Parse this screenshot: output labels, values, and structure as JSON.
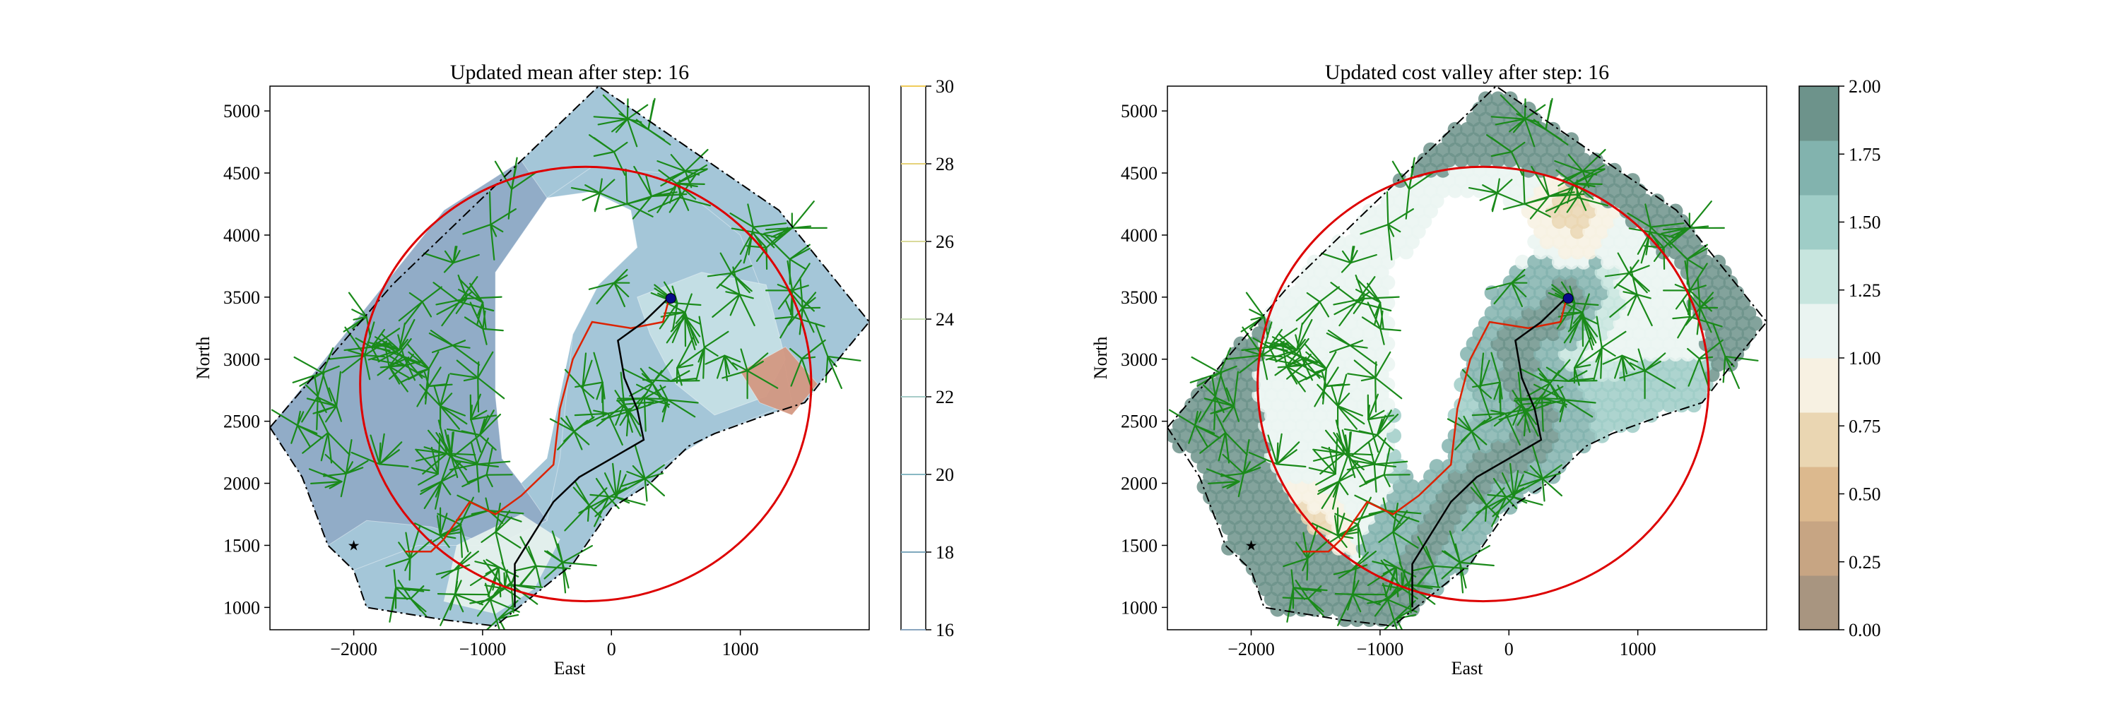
{
  "figure": {
    "panels": [
      {
        "title": "Updated mean after step: 16",
        "xlabel": "East",
        "ylabel": "North",
        "xlim": [
          -2650,
          2000
        ],
        "ylim": [
          820,
          5200
        ],
        "xticks": [
          -2000,
          -1000,
          0,
          1000
        ],
        "xtick_labels": [
          "−2000",
          "−1000",
          "0",
          "1000"
        ],
        "yticks": [
          1000,
          1500,
          2000,
          2500,
          3000,
          3500,
          4000,
          4500,
          5000
        ],
        "ytick_labels": [
          "1000",
          "1500",
          "2000",
          "2500",
          "3000",
          "3500",
          "4000",
          "4500",
          "5000"
        ],
        "colorbar": {
          "type": "line-contour",
          "ticks": [
            16,
            18,
            20,
            22,
            24,
            26,
            28,
            30
          ],
          "tick_labels": [
            "16",
            "18",
            "20",
            "22",
            "24",
            "26",
            "28",
            "30"
          ],
          "range": [
            16,
            30
          ],
          "line_colors": [
            "#8aa5bf",
            "#7fa8bd",
            "#88b8c4",
            "#a7ccc8",
            "#c7dcb3",
            "#d9d99a",
            "#e6d27a",
            "#f0cc5a"
          ]
        }
      },
      {
        "title": "Updated cost valley after step: 16",
        "xlabel": "East",
        "ylabel": "North",
        "xlim": [
          -2650,
          2000
        ],
        "ylim": [
          820,
          5200
        ],
        "xticks": [
          -2000,
          -1000,
          0,
          1000
        ],
        "xtick_labels": [
          "−2000",
          "−1000",
          "0",
          "1000"
        ],
        "yticks": [
          1000,
          1500,
          2000,
          2500,
          3000,
          3500,
          4000,
          4500,
          5000
        ],
        "ytick_labels": [
          "1000",
          "1500",
          "2000",
          "2500",
          "3000",
          "3500",
          "4000",
          "4500",
          "5000"
        ],
        "colorbar": {
          "type": "filled-bands",
          "ticks": [
            0.0,
            0.25,
            0.5,
            0.75,
            1.0,
            1.25,
            1.5,
            1.75,
            2.0
          ],
          "tick_labels": [
            "0.00",
            "0.25",
            "0.50",
            "0.75",
            "1.00",
            "1.25",
            "1.50",
            "1.75",
            "2.00"
          ],
          "range": [
            0,
            2
          ],
          "band_colors": [
            "#a89580",
            "#c7a583",
            "#dcb98e",
            "#ead6b2",
            "#f7f1e2",
            "#eaf4f1",
            "#c7e5de",
            "#9fcdc7",
            "#82b3ae",
            "#6d938b"
          ]
        }
      }
    ]
  },
  "chart_data": [
    {
      "type": "heatmap",
      "title": "Updated mean after step: 16",
      "xlabel": "East",
      "ylabel": "North",
      "xlim": [
        -2650,
        2000
      ],
      "ylim": [
        820,
        5200
      ],
      "colorbar_range": [
        16,
        30
      ],
      "colors": {
        "low": "#8fa9c6",
        "mid_low": "#a4c6d8",
        "mid": "#c6e0e5",
        "mid_high": "#e7f2ee",
        "high": "#d4967f",
        "boundary_circle": "#dd0000",
        "planned_path": "#dd2200",
        "travelled_path": "#000000",
        "trees": "#1a8a1a",
        "domain_outline": "#000000"
      },
      "domain_polygon": [
        [
          -2650,
          2450
        ],
        [
          -1700,
          3600
        ],
        [
          -700,
          4600
        ],
        [
          -100,
          5200
        ],
        [
          1300,
          4200
        ],
        [
          2000,
          3300
        ],
        [
          1800,
          3050
        ],
        [
          1500,
          2650
        ],
        [
          1200,
          2550
        ],
        [
          800,
          2400
        ],
        [
          600,
          2300
        ],
        [
          300,
          2000
        ],
        [
          0,
          1800
        ],
        [
          -300,
          1350
        ],
        [
          -600,
          1100
        ],
        [
          -900,
          850
        ],
        [
          -1300,
          900
        ],
        [
          -1900,
          1000
        ],
        [
          -2000,
          1300
        ],
        [
          -2200,
          1500
        ],
        [
          -2400,
          2050
        ],
        [
          -2650,
          2450
        ]
      ],
      "hole_polygon": [
        [
          -900,
          3700
        ],
        [
          -500,
          4300
        ],
        [
          -150,
          4350
        ],
        [
          150,
          4200
        ],
        [
          200,
          3900
        ],
        [
          -100,
          3600
        ],
        [
          -300,
          3200
        ],
        [
          -400,
          2700
        ],
        [
          -500,
          2200
        ],
        [
          -700,
          2000
        ],
        [
          -850,
          2200
        ],
        [
          -900,
          2700
        ],
        [
          -900,
          3700
        ]
      ],
      "zones": [
        {
          "name": "dark",
          "value": 17,
          "polygon": [
            [
              -2650,
              2450
            ],
            [
              -1300,
              4200
            ],
            [
              -700,
              4600
            ],
            [
              -500,
              4300
            ],
            [
              -900,
              3700
            ],
            [
              -900,
              2700
            ],
            [
              -850,
              2200
            ],
            [
              -700,
              2000
            ],
            [
              -500,
              1700
            ],
            [
              -900,
              1500
            ],
            [
              -1400,
              1650
            ],
            [
              -1900,
              1700
            ],
            [
              -2200,
              1500
            ],
            [
              -2400,
              2050
            ],
            [
              -2650,
              2450
            ]
          ]
        },
        {
          "name": "medium",
          "value": 19,
          "polygon": [
            [
              -500,
              4300
            ],
            [
              -150,
              4550
            ],
            [
              400,
              4500
            ],
            [
              1000,
              4000
            ],
            [
              1300,
              3200
            ],
            [
              1400,
              2650
            ],
            [
              800,
              2400
            ],
            [
              400,
              2150
            ],
            [
              0,
              1800
            ],
            [
              -300,
              1350
            ],
            [
              -600,
              1100
            ],
            [
              -900,
              850
            ],
            [
              -1300,
              900
            ],
            [
              -1900,
              1000
            ],
            [
              -2000,
              1300
            ],
            [
              -1500,
              1500
            ],
            [
              -900,
              1500
            ],
            [
              -500,
              1700
            ],
            [
              -400,
              2200
            ],
            [
              -300,
              3200
            ],
            [
              -100,
              3600
            ],
            [
              200,
              3900
            ],
            [
              150,
              4200
            ],
            [
              -150,
              4350
            ],
            [
              -500,
              4300
            ]
          ]
        },
        {
          "name": "light",
          "value": 21,
          "polygon": [
            [
              200,
              3500
            ],
            [
              700,
              3700
            ],
            [
              1200,
              3600
            ],
            [
              1350,
              3000
            ],
            [
              1200,
              2700
            ],
            [
              800,
              2550
            ],
            [
              500,
              2800
            ],
            [
              300,
              3200
            ],
            [
              200,
              3500
            ]
          ]
        },
        {
          "name": "lighter",
          "value": 22,
          "polygon": [
            [
              -1200,
              1500
            ],
            [
              -700,
              1750
            ],
            [
              -400,
              1550
            ],
            [
              -600,
              1150
            ],
            [
              -900,
              950
            ],
            [
              -1300,
              1050
            ],
            [
              -1200,
              1500
            ]
          ]
        },
        {
          "name": "warm",
          "value": 29,
          "polygon": [
            [
              1000,
              2900
            ],
            [
              1350,
              3100
            ],
            [
              1600,
              2800
            ],
            [
              1400,
              2550
            ],
            [
              1150,
              2650
            ],
            [
              1000,
              2900
            ]
          ]
        }
      ],
      "boundary_circle": {
        "center": [
          -200,
          2800
        ],
        "radius": 1750
      },
      "planned_path": [
        [
          -1600,
          1450
        ],
        [
          -1400,
          1450
        ],
        [
          -1300,
          1550
        ],
        [
          -1100,
          1850
        ],
        [
          -900,
          1750
        ],
        [
          -700,
          1900
        ],
        [
          -450,
          2150
        ],
        [
          -400,
          2600
        ],
        [
          -300,
          3000
        ],
        [
          -150,
          3300
        ],
        [
          150,
          3250
        ],
        [
          400,
          3300
        ],
        [
          450,
          3500
        ]
      ],
      "travelled_path": [
        [
          -750,
          1000
        ],
        [
          -750,
          1350
        ],
        [
          -600,
          1600
        ],
        [
          -450,
          1850
        ],
        [
          -250,
          2050
        ],
        [
          0,
          2200
        ],
        [
          250,
          2350
        ],
        [
          200,
          2600
        ],
        [
          100,
          2850
        ],
        [
          50,
          3150
        ],
        [
          250,
          3300
        ],
        [
          400,
          3450
        ],
        [
          450,
          3500
        ]
      ],
      "current_position": [
        460,
        3490
      ],
      "start_marker": [
        -2000,
        1500
      ]
    },
    {
      "type": "heatmap",
      "title": "Updated cost valley after step: 16",
      "xlabel": "East",
      "ylabel": "North",
      "xlim": [
        -2650,
        2000
      ],
      "ylim": [
        820,
        5200
      ],
      "colorbar_range": [
        0,
        2
      ],
      "colors": {
        "boundary_circle": "#dd0000",
        "planned_path": "#dd2200",
        "travelled_path": "#000000",
        "trees": "#1a8a1a",
        "domain_outline": "#000000"
      },
      "domain_polygon": [
        [
          -2650,
          2450
        ],
        [
          -1700,
          3600
        ],
        [
          -700,
          4600
        ],
        [
          -100,
          5200
        ],
        [
          1300,
          4200
        ],
        [
          2000,
          3300
        ],
        [
          1800,
          3050
        ],
        [
          1500,
          2650
        ],
        [
          1200,
          2550
        ],
        [
          800,
          2400
        ],
        [
          600,
          2300
        ],
        [
          300,
          2000
        ],
        [
          0,
          1800
        ],
        [
          -300,
          1350
        ],
        [
          -600,
          1100
        ],
        [
          -900,
          850
        ],
        [
          -1300,
          900
        ],
        [
          -1900,
          1000
        ],
        [
          -2000,
          1300
        ],
        [
          -2200,
          1500
        ],
        [
          -2400,
          2050
        ],
        [
          -2650,
          2450
        ]
      ],
      "hole_polygon": [
        [
          -900,
          3700
        ],
        [
          -500,
          4300
        ],
        [
          -150,
          4350
        ],
        [
          150,
          4200
        ],
        [
          200,
          3900
        ],
        [
          -100,
          3600
        ],
        [
          -300,
          3200
        ],
        [
          -400,
          2700
        ],
        [
          -500,
          2200
        ],
        [
          -700,
          2000
        ],
        [
          -850,
          2200
        ],
        [
          -900,
          2700
        ],
        [
          -900,
          3700
        ]
      ],
      "cost_zones": [
        {
          "name": "outside-high",
          "value": 2.0
        },
        {
          "name": "west-light",
          "value": 1.1
        },
        {
          "name": "southwest-low",
          "value": 0.5,
          "center": [
            -1650,
            1550
          ]
        },
        {
          "name": "north-low",
          "value": 0.6,
          "center": [
            500,
            4200
          ]
        },
        {
          "name": "east-mid",
          "value": 1.4,
          "center": [
            700,
            3300
          ]
        },
        {
          "name": "path-corridor-high",
          "value": 1.9
        }
      ],
      "boundary_circle": {
        "center": [
          -200,
          2800
        ],
        "radius": 1750
      },
      "planned_path": [
        [
          -1600,
          1450
        ],
        [
          -1400,
          1450
        ],
        [
          -1300,
          1550
        ],
        [
          -1100,
          1850
        ],
        [
          -900,
          1750
        ],
        [
          -700,
          1900
        ],
        [
          -450,
          2150
        ],
        [
          -400,
          2600
        ],
        [
          -300,
          3000
        ],
        [
          -150,
          3300
        ],
        [
          150,
          3250
        ],
        [
          400,
          3300
        ],
        [
          450,
          3500
        ]
      ],
      "travelled_path": [
        [
          -750,
          1000
        ],
        [
          -750,
          1350
        ],
        [
          -600,
          1600
        ],
        [
          -450,
          1850
        ],
        [
          -250,
          2050
        ],
        [
          0,
          2200
        ],
        [
          250,
          2350
        ],
        [
          200,
          2600
        ],
        [
          100,
          2850
        ],
        [
          50,
          3150
        ],
        [
          250,
          3300
        ],
        [
          400,
          3450
        ],
        [
          450,
          3500
        ]
      ],
      "current_position": [
        460,
        3490
      ],
      "start_marker": [
        -2000,
        1500
      ]
    }
  ]
}
